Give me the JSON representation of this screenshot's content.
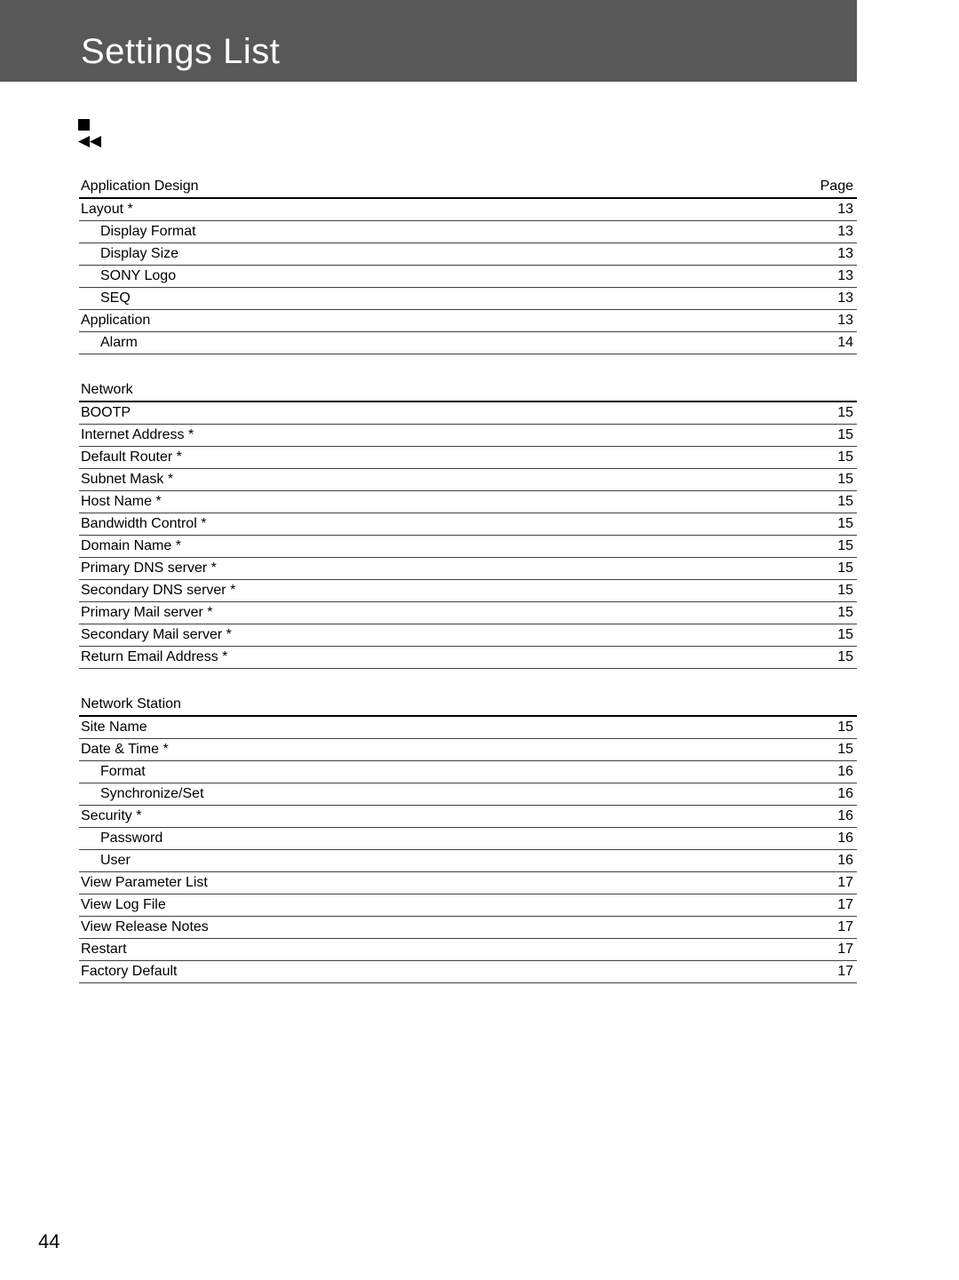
{
  "colors": {
    "header_bg": "#585858",
    "page_bg": "#ffffff",
    "text": "#000000",
    "title_text": "#ffffff",
    "rule": "#404040"
  },
  "typography": {
    "title_fontsize": 40,
    "body_fontsize": 16,
    "pagenum_fontsize": 22
  },
  "title": "Settings List",
  "page_header_label": "Page",
  "sections": [
    {
      "header": "Application Design",
      "header_page": "Page",
      "rows": [
        {
          "label": "Layout *",
          "page": "13",
          "indent": 0
        },
        {
          "label": "Display Format",
          "page": "13",
          "indent": 1
        },
        {
          "label": "Display Size",
          "page": "13",
          "indent": 1
        },
        {
          "label": "SONY Logo",
          "page": "13",
          "indent": 1
        },
        {
          "label": "SEQ",
          "page": "13",
          "indent": 1
        },
        {
          "label": "Application",
          "page": "13",
          "indent": 0
        },
        {
          "label": "Alarm",
          "page": "14",
          "indent": 1
        }
      ]
    },
    {
      "header": "Network",
      "header_page": "",
      "rows": [
        {
          "label": "BOOTP",
          "page": "15",
          "indent": 0
        },
        {
          "label": "Internet Address *",
          "page": "15",
          "indent": 0
        },
        {
          "label": "Default Router *",
          "page": "15",
          "indent": 0
        },
        {
          "label": "Subnet Mask *",
          "page": "15",
          "indent": 0
        },
        {
          "label": "Host Name *",
          "page": "15",
          "indent": 0
        },
        {
          "label": "Bandwidth Control *",
          "page": "15",
          "indent": 0
        },
        {
          "label": "Domain Name *",
          "page": "15",
          "indent": 0
        },
        {
          "label": "Primary DNS server *",
          "page": "15",
          "indent": 0
        },
        {
          "label": "Secondary DNS server *",
          "page": "15",
          "indent": 0
        },
        {
          "label": "Primary Mail server *",
          "page": "15",
          "indent": 0
        },
        {
          "label": "Secondary Mail server *",
          "page": "15",
          "indent": 0
        },
        {
          "label": "Return Email Address *",
          "page": "15",
          "indent": 0
        }
      ]
    },
    {
      "header": "Network Station",
      "header_page": "",
      "rows": [
        {
          "label": "Site Name",
          "page": "15",
          "indent": 0
        },
        {
          "label": "Date & Time *",
          "page": "15",
          "indent": 0
        },
        {
          "label": "Format",
          "page": "16",
          "indent": 1
        },
        {
          "label": "Synchronize/Set",
          "page": "16",
          "indent": 1
        },
        {
          "label": "Security *",
          "page": "16",
          "indent": 0
        },
        {
          "label": "Password",
          "page": "16",
          "indent": 1
        },
        {
          "label": "User",
          "page": "16",
          "indent": 1
        },
        {
          "label": "View Parameter List",
          "page": "17",
          "indent": 0
        },
        {
          "label": "View Log File",
          "page": "17",
          "indent": 0
        },
        {
          "label": "View Release Notes",
          "page": "17",
          "indent": 0
        },
        {
          "label": "Restart",
          "page": "17",
          "indent": 0
        },
        {
          "label": "Factory Default",
          "page": "17",
          "indent": 0
        }
      ]
    }
  ],
  "page_number": "44"
}
